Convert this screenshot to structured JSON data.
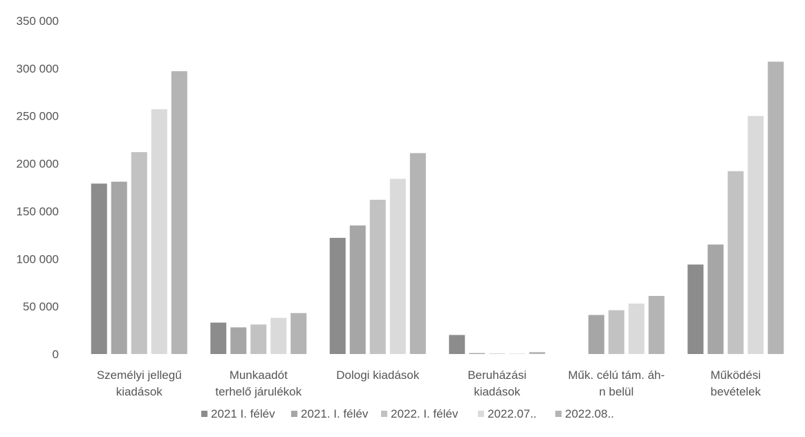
{
  "chart_data": {
    "type": "bar",
    "title": "",
    "xlabel": "",
    "ylabel": "",
    "ylim": [
      0,
      350000
    ],
    "yticks": [
      0,
      50000,
      100000,
      150000,
      200000,
      250000,
      300000,
      350000
    ],
    "ytick_labels": [
      "0",
      "50 000",
      "100 000",
      "150 000",
      "200 000",
      "250 000",
      "300 000",
      "350 000"
    ],
    "grid": false,
    "legend_position": "bottom",
    "categories": [
      [
        "Személyi jellegű",
        "kiadások"
      ],
      [
        "Munkaadót",
        "terhelő járulékok"
      ],
      [
        "Dologi kiadások"
      ],
      [
        "Beruházási",
        "kiadások"
      ],
      [
        "Műk. célú tám. áh-",
        "n belül"
      ],
      [
        "Működési",
        "bevételek"
      ]
    ],
    "series": [
      {
        "name": "2021 I. félév",
        "color": "#8c8c8c",
        "values": [
          179000,
          33000,
          122000,
          20000,
          0,
          94000
        ]
      },
      {
        "name": "2021. I. félév",
        "color": "#a6a6a6",
        "values": [
          181000,
          28000,
          135000,
          1000,
          41000,
          115000
        ]
      },
      {
        "name": "2022. I. félév",
        "color": "#c2c2c2",
        "values": [
          212000,
          31000,
          162000,
          500,
          46000,
          192000
        ]
      },
      {
        "name": "2022.07..",
        "color": "#dadada",
        "values": [
          257000,
          38000,
          184000,
          500,
          53000,
          250000
        ]
      },
      {
        "name": "2022.08..",
        "color": "#b4b4b4",
        "values": [
          297000,
          43000,
          211000,
          2000,
          61000,
          307000
        ]
      }
    ]
  }
}
